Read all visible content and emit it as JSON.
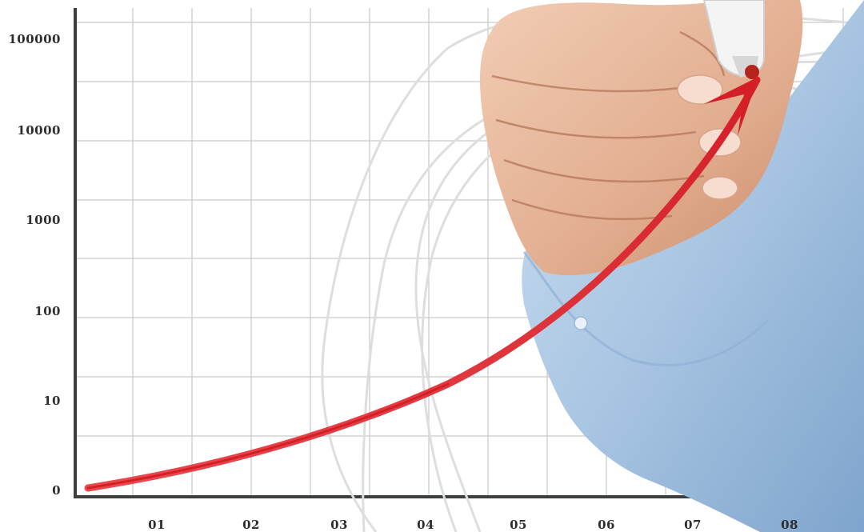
{
  "y_axis_labels": [
    "100000",
    "10000",
    "1000",
    "100",
    "10",
    "0"
  ],
  "x_axis_labels": [
    "01",
    "02",
    "03",
    "04",
    "05",
    "06",
    "07",
    "08"
  ],
  "colors": {
    "grid": "#c9c9c9",
    "axis": "#3c3f40",
    "arrow": "#e0242b",
    "sketch_lines": "#dcdcdc",
    "shirt": "#a9c6e3",
    "skin": "#e6b59a"
  },
  "scene": {
    "subject": "hand-drawing-red-growth-arrow",
    "icons": [
      "marker-pen-icon",
      "growth-arrow-icon"
    ]
  }
}
